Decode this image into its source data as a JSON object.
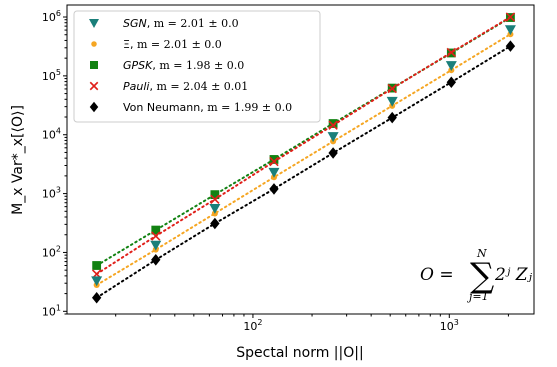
{
  "chart_data": {
    "type": "scatter",
    "xscale": "log",
    "yscale": "log",
    "xlim": [
      11.3,
      2700
    ],
    "ylim": [
      9,
      1600000
    ],
    "xlabel": "Spectal norm ||O||",
    "ylabel": "M_x Var*_x[⟨O⟩]",
    "x_ticks": [
      {
        "value": 100,
        "base": "10",
        "exp": "2"
      },
      {
        "value": 1000,
        "base": "10",
        "exp": "3"
      }
    ],
    "y_ticks": [
      {
        "value": 10,
        "base": "10",
        "exp": "1"
      },
      {
        "value": 100,
        "base": "10",
        "exp": "2"
      },
      {
        "value": 1000,
        "base": "10",
        "exp": "3"
      },
      {
        "value": 10000,
        "base": "10",
        "exp": "4"
      },
      {
        "value": 100000,
        "base": "10",
        "exp": "5"
      },
      {
        "value": 1000000,
        "base": "10",
        "exp": "6"
      }
    ],
    "x": [
      16,
      32,
      64,
      128,
      256,
      512,
      1024,
      2048
    ],
    "series": [
      {
        "name": "SGN",
        "slope": "m = 2.01 ± 0.0",
        "color": "#1a7f7a",
        "marker": "triangle-down",
        "line": false,
        "values": [
          33,
          133,
          560,
          2300,
          9300,
          37000,
          150000,
          610000
        ]
      },
      {
        "name": "Ξ",
        "slope": "m = 2.01 ± 0.0",
        "color": "#f5a623",
        "marker": "circle",
        "line": true,
        "values": [
          28,
          112,
          460,
          1900,
          7700,
          31000,
          125000,
          510000
        ]
      },
      {
        "name": "GPSK",
        "slope": "m = 1.98 ± 0.0",
        "color": "#128212",
        "marker": "square",
        "line": true,
        "values": [
          60,
          240,
          960,
          3800,
          15500,
          62000,
          245000,
          980000
        ]
      },
      {
        "name": "Pauli",
        "slope": "m = 2.04 ± 0.01",
        "color": "#e0201a",
        "marker": "x",
        "line": true,
        "values": [
          43,
          190,
          800,
          3500,
          14500,
          61000,
          250000,
          1000000
        ]
      },
      {
        "name": "Von Neumann",
        "slope": "m = 1.99 ± 0.0",
        "color": "#000000",
        "marker": "diamond",
        "line": true,
        "values": [
          17,
          75,
          310,
          1200,
          4900,
          19500,
          78000,
          320000
        ]
      }
    ],
    "annotation": {
      "lhs": "O =",
      "sum_top": "N",
      "sum_bottom": "j=1",
      "term": "2ʲ Zⱼ"
    },
    "legend_position": "upper-left",
    "grid": false
  }
}
